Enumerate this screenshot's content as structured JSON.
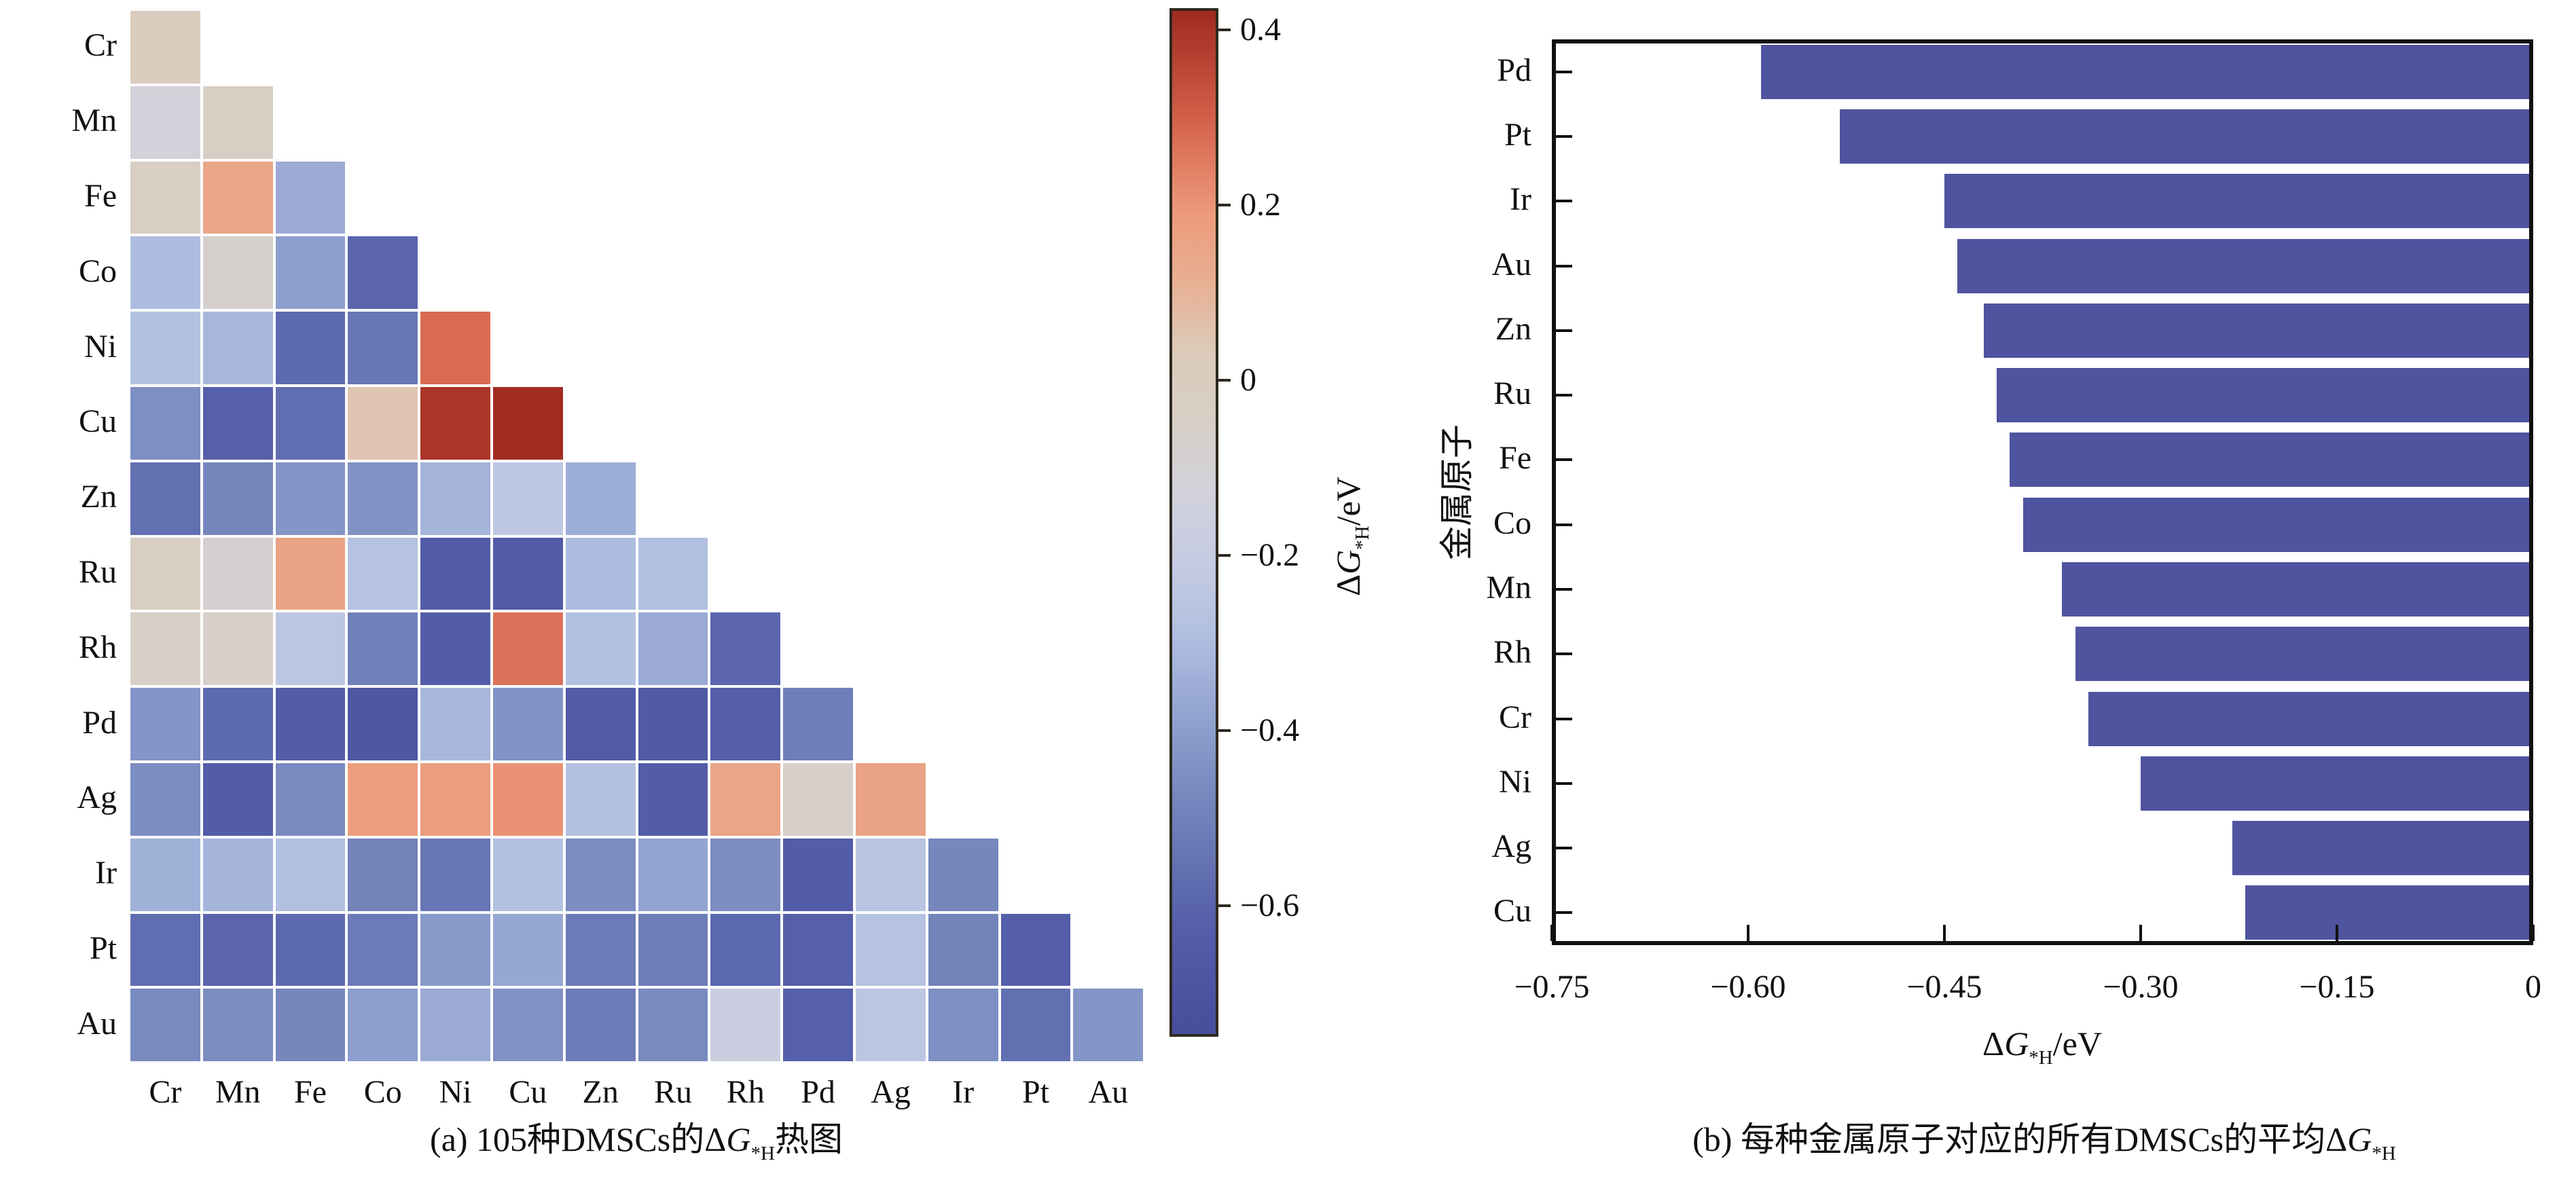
{
  "figure": {
    "caption_a": {
      "prefix": "(a) 105种DMSCs的",
      "delta": "Δ",
      "g_symbol": "G",
      "subscript": "*H",
      "suffix": "热图"
    },
    "caption_b": {
      "prefix": "(b) 每种金属原子对应的所有DMSCs的平均",
      "delta": "Δ",
      "g_symbol": "G",
      "subscript": "*H",
      "suffix": ""
    }
  },
  "colorbar": {
    "tick_labels": [
      "0.4",
      "0.2",
      "0",
      "−0.2",
      "−0.4",
      "−0.6"
    ],
    "tick_values": [
      0.4,
      0.2,
      0,
      -0.2,
      -0.4,
      -0.6
    ],
    "label": {
      "delta": "Δ",
      "g_symbol": "G",
      "subscript": "*H",
      "suffix": "/eV"
    },
    "border_color": "#2e2820"
  },
  "chart_data": [
    {
      "type": "heatmap",
      "title": "(a) 105种DMSCs的ΔG*H热图",
      "unit": "eV",
      "x_categories": [
        "Cr",
        "Mn",
        "Fe",
        "Co",
        "Ni",
        "Cu",
        "Zn",
        "Ru",
        "Rh",
        "Pd",
        "Ag",
        "Ir",
        "Pt",
        "Au"
      ],
      "y_categories": [
        "Cr",
        "Mn",
        "Fe",
        "Co",
        "Ni",
        "Cu",
        "Zn",
        "Ru",
        "Rh",
        "Pd",
        "Ag",
        "Ir",
        "Pt",
        "Au"
      ],
      "shape": "lower-triangular",
      "rows": [
        {
          "metal": "Cr",
          "values": [
            0.02
          ]
        },
        {
          "metal": "Mn",
          "values": [
            -0.12,
            -0.02
          ]
        },
        {
          "metal": "Fe",
          "values": [
            -0.03,
            0.15,
            -0.36
          ]
        },
        {
          "metal": "Co",
          "values": [
            -0.3,
            -0.07,
            -0.4,
            -0.6
          ]
        },
        {
          "metal": "Ni",
          "values": [
            -0.28,
            -0.32,
            -0.58,
            -0.54,
            0.28
          ]
        },
        {
          "metal": "Cu",
          "values": [
            -0.45,
            -0.62,
            -0.57,
            0.05,
            0.4,
            0.42
          ]
        },
        {
          "metal": "Zn",
          "values": [
            -0.56,
            -0.48,
            -0.43,
            -0.44,
            -0.33,
            -0.24,
            -0.35
          ]
        },
        {
          "metal": "Ru",
          "values": [
            -0.02,
            -0.08,
            0.16,
            -0.27,
            -0.64,
            -0.65,
            -0.3,
            -0.29
          ]
        },
        {
          "metal": "Rh",
          "values": [
            -0.04,
            -0.06,
            -0.25,
            -0.5,
            -0.64,
            0.27,
            -0.28,
            -0.36,
            -0.6
          ]
        },
        {
          "metal": "Pd",
          "values": [
            -0.43,
            -0.58,
            -0.64,
            -0.68,
            -0.32,
            -0.44,
            -0.65,
            -0.66,
            -0.63,
            -0.51
          ]
        },
        {
          "metal": "Ag",
          "values": [
            -0.46,
            -0.64,
            -0.47,
            0.18,
            0.18,
            0.21,
            -0.28,
            -0.64,
            0.15,
            -0.06,
            0.16
          ]
        },
        {
          "metal": "Ir",
          "values": [
            -0.34,
            -0.33,
            -0.29,
            -0.49,
            -0.54,
            -0.28,
            -0.46,
            -0.38,
            -0.46,
            -0.64,
            -0.26,
            -0.48
          ]
        },
        {
          "metal": "Pt",
          "values": [
            -0.57,
            -0.6,
            -0.58,
            -0.52,
            -0.41,
            -0.37,
            -0.52,
            -0.51,
            -0.59,
            -0.62,
            -0.27,
            -0.49,
            -0.63
          ]
        },
        {
          "metal": "Au",
          "values": [
            -0.47,
            -0.46,
            -0.48,
            -0.4,
            -0.36,
            -0.44,
            -0.52,
            -0.47,
            -0.18,
            -0.62,
            -0.25,
            -0.45,
            -0.56,
            -0.43
          ]
        }
      ],
      "color_scale": {
        "vmin": -0.75,
        "vmax": 0.425,
        "anchors": [
          {
            "value": -0.75,
            "color": "#474e9b"
          },
          {
            "value": -0.62,
            "color": "#555faa"
          },
          {
            "value": -0.5,
            "color": "#7081b9"
          },
          {
            "value": -0.4,
            "color": "#8c9ecd"
          },
          {
            "value": -0.3,
            "color": "#aebddf"
          },
          {
            "value": -0.22,
            "color": "#c3cbe3"
          },
          {
            "value": -0.13,
            "color": "#d2d2dd"
          },
          {
            "value": -0.05,
            "color": "#d7cfc7"
          },
          {
            "value": 0.03,
            "color": "#ddccbb"
          },
          {
            "value": 0.12,
            "color": "#e8ad90"
          },
          {
            "value": 0.2,
            "color": "#ec9878"
          },
          {
            "value": 0.3,
            "color": "#d4604a"
          },
          {
            "value": 0.425,
            "color": "#a02a20"
          }
        ]
      },
      "colorbar_title": "ΔG*H/eV",
      "colorbar_ticks": [
        0.4,
        0.2,
        0,
        -0.2,
        -0.4,
        -0.6
      ]
    },
    {
      "type": "bar",
      "orientation": "horizontal",
      "title": "(b) 每种金属原子对应的所有DMSCs的平均ΔG*H",
      "categories": [
        "Pd",
        "Pt",
        "Ir",
        "Au",
        "Zn",
        "Ru",
        "Fe",
        "Co",
        "Mn",
        "Rh",
        "Cr",
        "Ni",
        "Ag",
        "Cu"
      ],
      "values": [
        -0.59,
        -0.53,
        -0.45,
        -0.44,
        -0.42,
        -0.41,
        -0.4,
        -0.39,
        -0.36,
        -0.35,
        -0.34,
        -0.3,
        -0.23,
        -0.22
      ],
      "xlabel": "ΔG*H/eV",
      "ylabel": "金属原子",
      "xlim": [
        -0.75,
        0
      ],
      "xticks": [
        -0.75,
        -0.6,
        -0.45,
        -0.3,
        -0.15,
        0
      ],
      "xtick_labels": [
        "−0.75",
        "−0.60",
        "−0.45",
        "−0.30",
        "−0.15",
        "0"
      ],
      "bar_color": "#4e549e",
      "grid": false,
      "legend": "none"
    }
  ]
}
